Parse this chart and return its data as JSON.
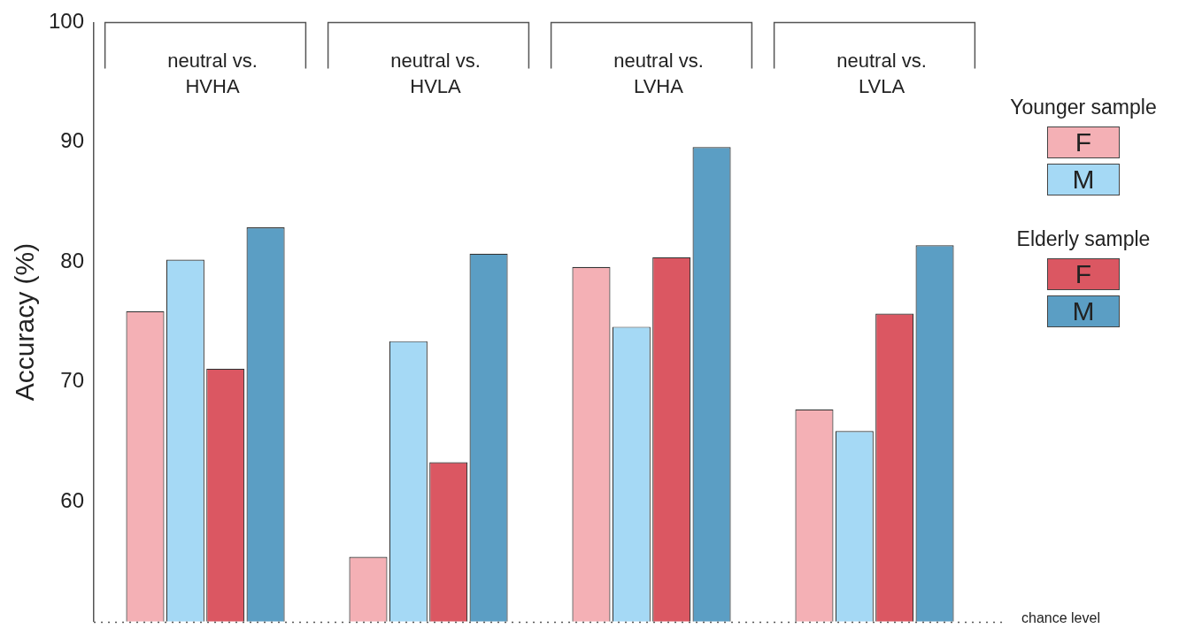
{
  "chart_data": {
    "type": "bar",
    "ylabel": "Accuracy (%)",
    "categories": [
      "neutral vs. HVHA",
      "neutral vs. HVLA",
      "neutral vs. LVHA",
      "neutral vs. LVLA"
    ],
    "series": [
      {
        "name": "F",
        "color": "#f4b0b5",
        "values": [
          75.9,
          55.4,
          79.6,
          67.7
        ]
      },
      {
        "name": "M",
        "color": "#a5d9f5",
        "values": [
          80.2,
          73.4,
          74.6,
          65.9
        ]
      },
      {
        "name": "F",
        "color": "#db5762",
        "values": [
          71.1,
          63.3,
          80.4,
          75.7
        ]
      },
      {
        "name": "M",
        "color": "#5b9ec4",
        "values": [
          82.9,
          80.7,
          89.6,
          81.4
        ]
      }
    ],
    "annotations": [
      "Younger sample",
      "Elderly sample"
    ],
    "ylim": [
      50,
      100
    ],
    "yticks": [
      60,
      70,
      80,
      90,
      100
    ],
    "grid": false,
    "legend": "right",
    "ref_lines": [
      {
        "axis": "y",
        "value": 50,
        "label": "chance level",
        "line_style": "dotted",
        "color": "#555555"
      }
    ]
  }
}
